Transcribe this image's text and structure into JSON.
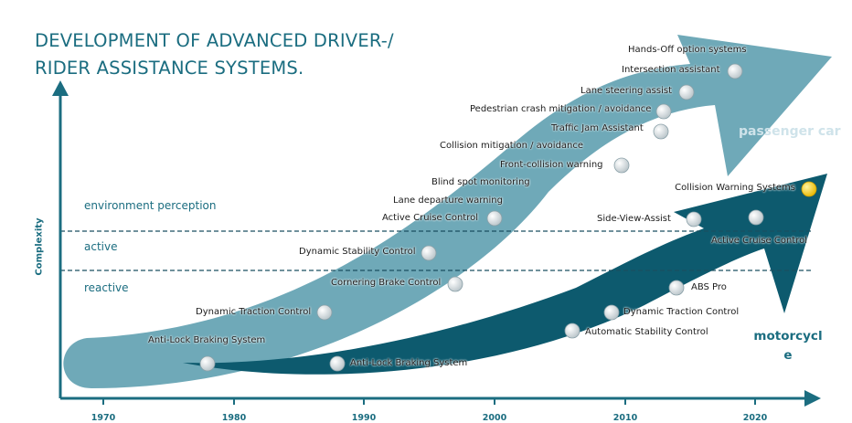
{
  "title": {
    "line1": "DEVELOPMENT OF ADVANCED DRIVER-/",
    "line2": "RIDER ASSISTANCE SYSTEMS."
  },
  "y_axis_label": "Complexity",
  "zones": [
    "environment perception",
    "active",
    "reactive"
  ],
  "years": [
    "1970",
    "1980",
    "1990",
    "2000",
    "2010",
    "2020"
  ],
  "series": {
    "passenger_car": "passenger car",
    "motorcycle": "motorcycl e"
  },
  "colors": {
    "passenger_car_arrow": "#6fa9b8",
    "motorcycle_arrow": "#0d5a6e",
    "axis": "#1b6d80",
    "highlight_dot": "#f5c800"
  },
  "passenger_car_systems": [
    "Anti-Lock Braking System",
    "Dynamic Traction Control",
    "Cornering Brake Control",
    "Dynamic Stability Control",
    "Active Cruise Control",
    "Lane departure warning",
    "Blind spot monitoring",
    "Front-collision warning",
    "Collision mitigation / avoidance",
    "Traffic Jam Assistant",
    "Pedestrian crash mitigation / avoidance",
    "Lane steering assist",
    "Intersection assistant",
    "Hands-Off option systems"
  ],
  "motorcycle_systems": [
    "Anti-Lock Braking System",
    "Automatic Stability Control",
    "Dynamic Traction Control",
    "ABS Pro",
    "Side-View-Assist",
    "Active Cruise Control",
    "Collision Warning Systems"
  ]
}
